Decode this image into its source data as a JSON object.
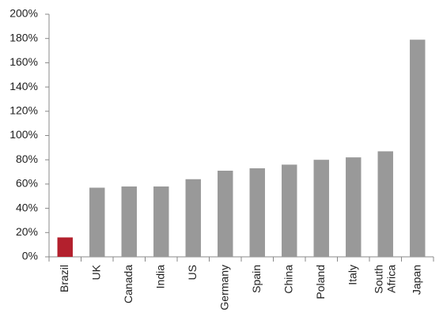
{
  "chart_data": {
    "type": "bar",
    "categories": [
      "Brazil",
      "UK",
      "Canada",
      "India",
      "US",
      "Germany",
      "Spain",
      "China",
      "Poland",
      "Italy",
      "South Africa",
      "Japan"
    ],
    "values": [
      16,
      57,
      58,
      58,
      64,
      71,
      73,
      76,
      80,
      82,
      87,
      179
    ],
    "colors": [
      "#b3202d",
      "#999999",
      "#999999",
      "#999999",
      "#999999",
      "#999999",
      "#999999",
      "#999999",
      "#999999",
      "#999999",
      "#999999",
      "#999999"
    ],
    "ylim": [
      0,
      200
    ],
    "yticks": [
      {
        "value": 0,
        "label": "0%"
      },
      {
        "value": 20,
        "label": "20%"
      },
      {
        "value": 40,
        "label": "40%"
      },
      {
        "value": 60,
        "label": "60%"
      },
      {
        "value": 80,
        "label": "80%"
      },
      {
        "value": 100,
        "label": "100%"
      },
      {
        "value": 120,
        "label": "120%"
      },
      {
        "value": 140,
        "label": "140%"
      },
      {
        "value": 160,
        "label": "160%"
      },
      {
        "value": 180,
        "label": "180%"
      },
      {
        "value": 200,
        "label": "200%"
      }
    ],
    "grid": false
  }
}
